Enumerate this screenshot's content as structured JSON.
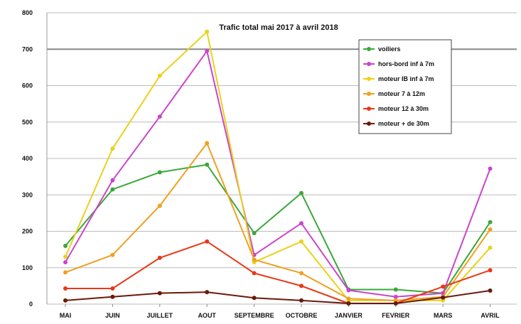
{
  "chart_data": {
    "type": "line",
    "title": "Trafic total mai 2017 à avril 2018",
    "xlabel": "",
    "ylabel": "",
    "categories": [
      "MAI",
      "JUIN",
      "JUILLET",
      "AOUT",
      "SEPTEMBRE",
      "OCTOBRE",
      "JANVIER",
      "FEVRIER",
      "MARS",
      "AVRIL"
    ],
    "ylim": [
      0,
      800
    ],
    "yticks": [
      "0",
      "100",
      "200",
      "300",
      "400",
      "500",
      "600",
      "700",
      "800"
    ],
    "grid": "horizontal",
    "legend_position": "top-right",
    "series": [
      {
        "name": "voiliers",
        "color": "#3aa83a",
        "values": [
          160,
          315,
          362,
          383,
          195,
          305,
          40,
          40,
          30,
          225
        ]
      },
      {
        "name": "hors-bord inf à 7m",
        "color": "#cc44cc",
        "values": [
          115,
          340,
          515,
          695,
          135,
          222,
          38,
          20,
          30,
          372
        ]
      },
      {
        "name": "moteur IB inf à 7m",
        "color": "#e8d21c",
        "values": [
          130,
          427,
          627,
          748,
          115,
          172,
          10,
          10,
          10,
          155
        ]
      },
      {
        "name": "moteur 7 à 12m",
        "color": "#f0a020",
        "values": [
          87,
          135,
          270,
          442,
          122,
          85,
          15,
          10,
          20,
          205
        ]
      },
      {
        "name": "moteur 12 à 30m",
        "color": "#e83818",
        "values": [
          43,
          43,
          127,
          172,
          85,
          50,
          2,
          2,
          48,
          93
        ]
      },
      {
        "name": "moteur + de 30m",
        "color": "#6b1a0a",
        "values": [
          10,
          20,
          30,
          33,
          17,
          10,
          2,
          2,
          18,
          37
        ]
      }
    ]
  }
}
